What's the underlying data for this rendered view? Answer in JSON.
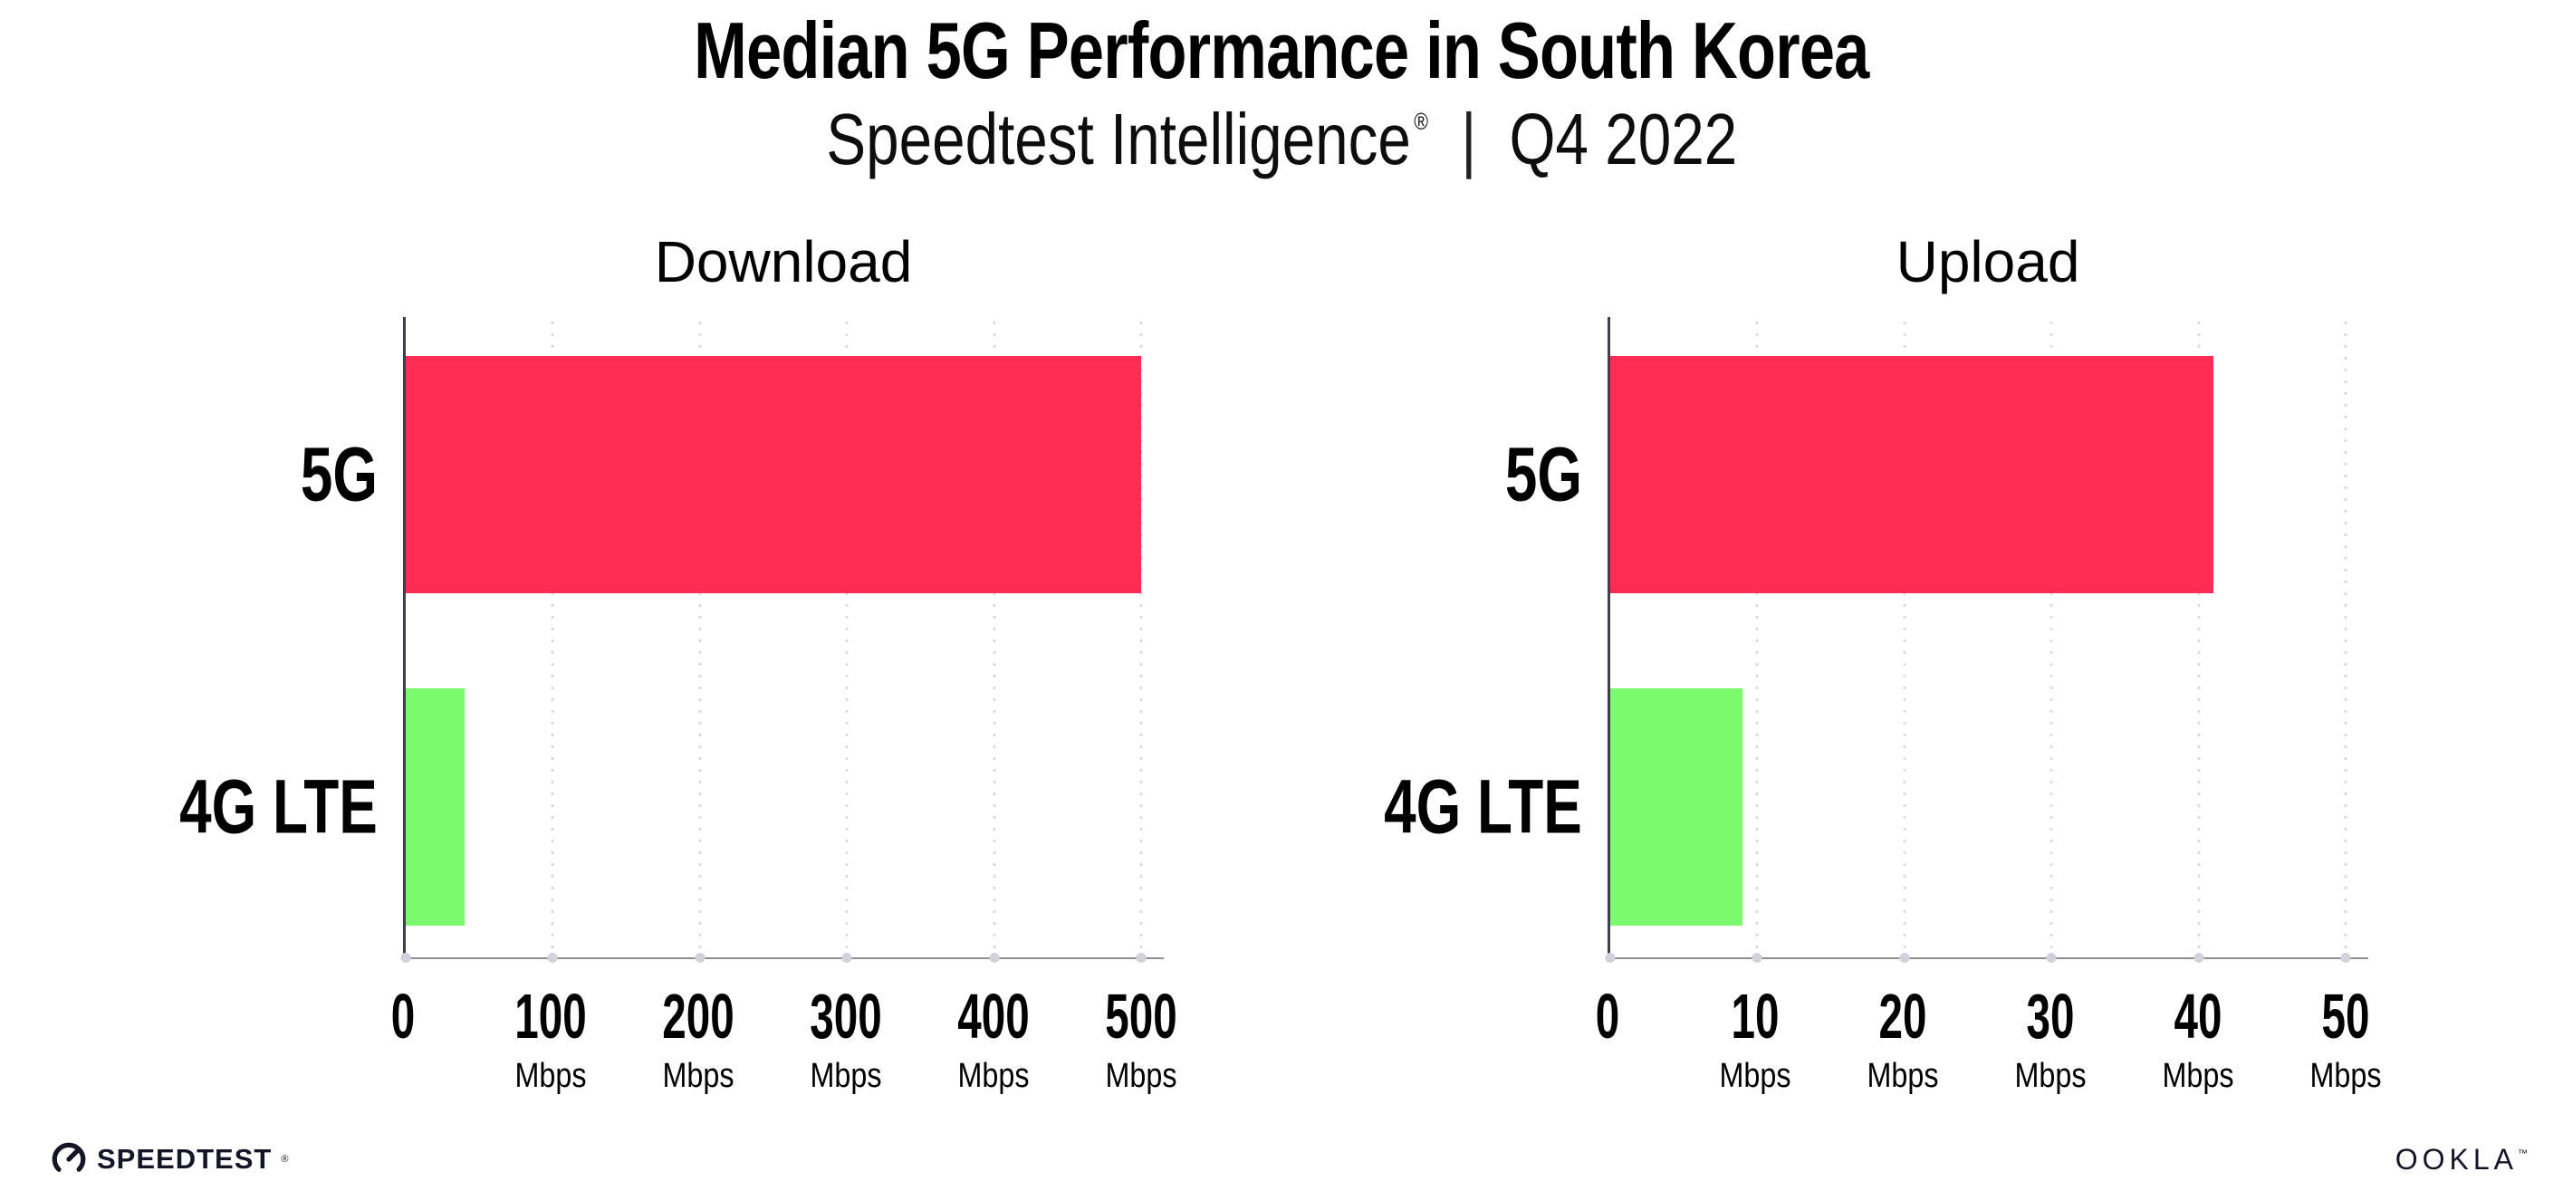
{
  "header": {
    "title": "Median 5G Performance in South Korea",
    "subtitle": {
      "brand": "Speedtest Intelligence",
      "reg_mark": "®",
      "separator": "|",
      "period": "Q4 2022"
    }
  },
  "chart_data": [
    {
      "type": "bar",
      "orientation": "horizontal",
      "title": "Download",
      "categories": [
        "5G",
        "4G LTE"
      ],
      "values": [
        500,
        40
      ],
      "unit": "Mbps",
      "xlabel": "Mbps",
      "xlim": [
        0,
        500
      ],
      "xticks": [
        0,
        100,
        200,
        300,
        400,
        500
      ],
      "grid": "vertical dotted lines at major ticks",
      "bar_colors": [
        "#FF2D55",
        "#7DFB6E"
      ]
    },
    {
      "type": "bar",
      "orientation": "horizontal",
      "title": "Upload",
      "categories": [
        "5G",
        "4G LTE"
      ],
      "values": [
        41,
        9
      ],
      "unit": "Mbps",
      "xlabel": "Mbps",
      "xlim": [
        0,
        50
      ],
      "xticks": [
        0,
        10,
        20,
        30,
        40,
        50
      ],
      "grid": "vertical dotted lines at major ticks",
      "bar_colors": [
        "#FF2D55",
        "#7DFB6E"
      ]
    }
  ],
  "footer": {
    "speedtest_label": "SPEEDTEST",
    "speedtest_mark": "®",
    "ookla_label": "OOKLA",
    "ookla_mark": "™"
  },
  "colors": {
    "bar_5g": "#FF2D55",
    "bar_4g_lte": "#7DFB6E",
    "gridline_dots": "#D9D9E3",
    "x_axis_line": "#8F8F8F",
    "y_axis_line": "#3F3F4D",
    "text": "#000000"
  }
}
